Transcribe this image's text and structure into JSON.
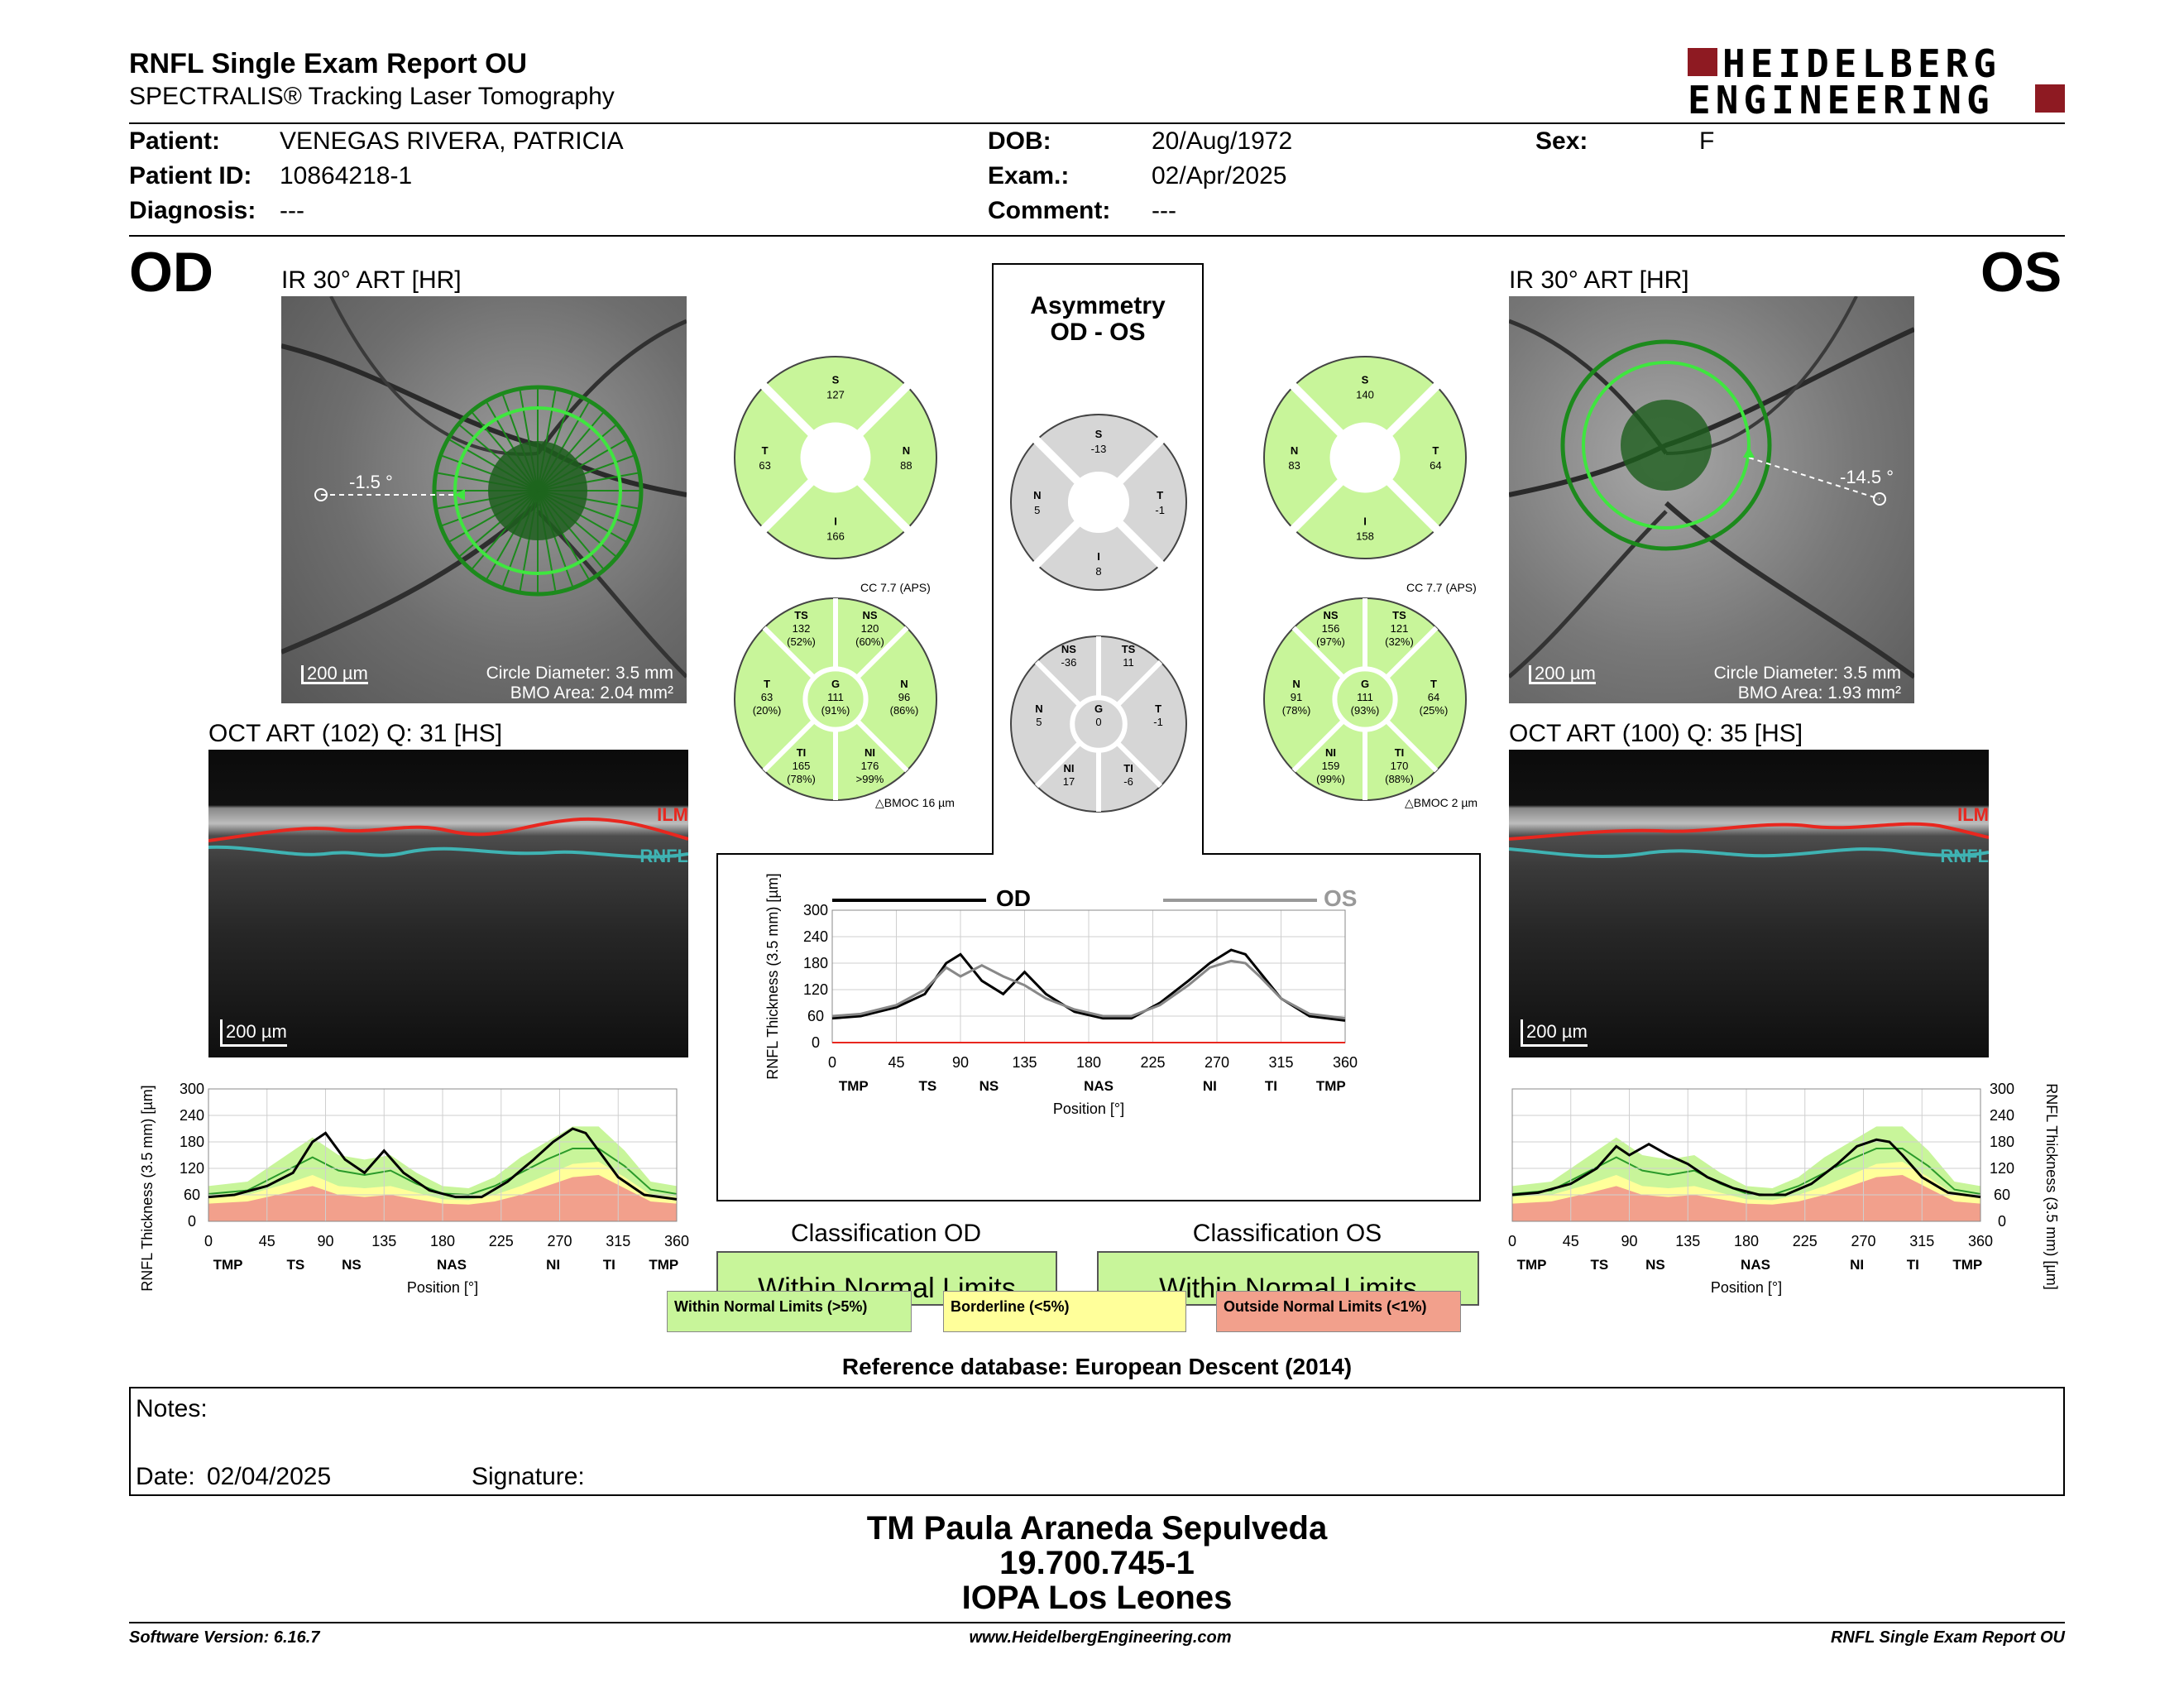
{
  "header": {
    "title": "RNFL Single Exam Report OU",
    "subtitle": "SPECTRALIS® Tracking Laser Tomography",
    "logo_line1": "HEIDELBERG",
    "logo_line2": "ENGINEERING"
  },
  "patient": {
    "name_label": "Patient:",
    "name": "VENEGAS RIVERA, PATRICIA",
    "id_label": "Patient ID:",
    "id": "10864218-1",
    "diagnosis_label": "Diagnosis:",
    "diagnosis": "---",
    "dob_label": "DOB:",
    "dob": "20/Aug/1972",
    "exam_label": "Exam.:",
    "exam": "02/Apr/2025",
    "comment_label": "Comment:",
    "comment": "---",
    "sex_label": "Sex:",
    "sex": "F"
  },
  "od": {
    "eye": "OD",
    "ir_title": "IR 30° ART [HR]",
    "angle": "-1.5 °",
    "scale": "200 µm",
    "circle_diameter": "Circle Diameter: 3.5 mm",
    "bmo_area": "BMO Area: 2.04 mm²",
    "oct_title": "OCT ART (102) Q: 31 [HS]",
    "oct_scale": "200 µm",
    "ilm": "ILM",
    "rnfl": "RNFL",
    "sectors4": {
      "S": "127",
      "T": "63",
      "N": "88",
      "I": "166"
    },
    "cc": "CC 7.7 (APS)",
    "bmoc": "BMOC 16 µm",
    "sectors6": {
      "TS": [
        "132",
        "(52%)"
      ],
      "NS": [
        "120",
        "(60%)"
      ],
      "T": [
        "63",
        "(20%)"
      ],
      "G": [
        "111",
        "(91%)"
      ],
      "N": [
        "96",
        "(86%)"
      ],
      "TI": [
        "165",
        "(78%)"
      ],
      "NI": [
        "176",
        ">99%"
      ]
    },
    "classification_title": "Classification OD",
    "classification": "Within Normal Limits"
  },
  "os": {
    "eye": "OS",
    "ir_title": "IR 30° ART [HR]",
    "angle": "-14.5 °",
    "scale": "200 µm",
    "circle_diameter": "Circle Diameter: 3.5 mm",
    "bmo_area": "BMO Area: 1.93 mm²",
    "oct_title": "OCT ART (100) Q: 35 [HS]",
    "oct_scale": "200 µm",
    "ilm": "ILM",
    "rnfl": "RNFL",
    "sectors4": {
      "S": "140",
      "N": "83",
      "T": "64",
      "I": "158"
    },
    "cc": "CC 7.7 (APS)",
    "bmoc": "BMOC 2 µm",
    "sectors6": {
      "NS": [
        "156",
        "(97%)"
      ],
      "TS": [
        "121",
        "(32%)"
      ],
      "N": [
        "91",
        "(78%)"
      ],
      "G": [
        "111",
        "(93%)"
      ],
      "T": [
        "64",
        "(25%)"
      ],
      "NI": [
        "159",
        "(99%)"
      ],
      "TI": [
        "170",
        "(88%)"
      ]
    },
    "classification_title": "Classification OS",
    "classification": "Within Normal Limits"
  },
  "asymmetry": {
    "title1": "Asymmetry",
    "title2": "OD - OS",
    "sectors4": {
      "S": "-13",
      "N": "5",
      "T": "-1",
      "I": "8"
    },
    "sectors6": {
      "NS": "-36",
      "TS": "11",
      "N": "5",
      "G": "0",
      "T": "-1",
      "NI": "17",
      "TI": "-6"
    },
    "legend_od": "OD",
    "legend_os": "OS"
  },
  "chart_labels": {
    "ylabel": "RNFL Thickness (3.5 mm) [µm]",
    "xlabel": "Position [°]",
    "yticks": [
      "0",
      "60",
      "120",
      "180",
      "240",
      "300"
    ],
    "xticks": [
      "0",
      "45",
      "90",
      "135",
      "180",
      "225",
      "270",
      "315",
      "360"
    ],
    "regions": [
      "TMP",
      "TS",
      "NS",
      "NAS",
      "NI",
      "TI",
      "TMP"
    ]
  },
  "chart_data": [
    {
      "type": "line",
      "name": "OD RNFL thickness profile",
      "xlabel": "Position [°]",
      "ylabel": "RNFL Thickness (3.5 mm) [µm]",
      "xlim": [
        0,
        360
      ],
      "ylim": [
        0,
        300
      ],
      "x": [
        0,
        20,
        45,
        65,
        80,
        90,
        105,
        120,
        135,
        150,
        170,
        190,
        210,
        230,
        250,
        265,
        280,
        290,
        300,
        315,
        335,
        360
      ],
      "series": [
        {
          "name": "OD",
          "values": [
            55,
            60,
            80,
            110,
            180,
            200,
            140,
            110,
            160,
            110,
            70,
            55,
            55,
            90,
            140,
            180,
            210,
            200,
            160,
            100,
            60,
            50
          ]
        }
      ]
    },
    {
      "type": "line",
      "name": "Asymmetry OD vs OS",
      "xlabel": "Position [°]",
      "ylabel": "RNFL Thickness (3.5 mm) [µm]",
      "xlim": [
        0,
        360
      ],
      "ylim": [
        0,
        300
      ],
      "x": [
        0,
        20,
        45,
        65,
        80,
        90,
        105,
        120,
        135,
        150,
        170,
        190,
        210,
        230,
        250,
        265,
        280,
        290,
        300,
        315,
        335,
        360
      ],
      "series": [
        {
          "name": "OD",
          "values": [
            55,
            60,
            80,
            110,
            180,
            200,
            140,
            110,
            160,
            110,
            70,
            55,
            55,
            90,
            140,
            180,
            210,
            200,
            160,
            100,
            60,
            50
          ]
        },
        {
          "name": "OS",
          "values": [
            60,
            65,
            85,
            120,
            170,
            150,
            175,
            150,
            130,
            100,
            75,
            60,
            60,
            85,
            130,
            170,
            185,
            180,
            150,
            100,
            65,
            55
          ]
        }
      ]
    },
    {
      "type": "line",
      "name": "OS RNFL thickness profile",
      "xlabel": "Position [°]",
      "ylabel": "RNFL Thickness (3.5 mm) [µm]",
      "xlim": [
        0,
        360
      ],
      "ylim": [
        0,
        300
      ],
      "x": [
        0,
        20,
        45,
        65,
        80,
        90,
        105,
        120,
        135,
        150,
        170,
        190,
        210,
        230,
        250,
        265,
        280,
        290,
        300,
        315,
        335,
        360
      ],
      "series": [
        {
          "name": "OS",
          "values": [
            60,
            65,
            85,
            120,
            170,
            150,
            175,
            150,
            130,
            100,
            75,
            60,
            60,
            85,
            130,
            170,
            185,
            180,
            150,
            100,
            65,
            55
          ]
        }
      ]
    }
  ],
  "normative": {
    "x": [
      0,
      30,
      60,
      80,
      100,
      120,
      140,
      160,
      180,
      200,
      220,
      240,
      260,
      280,
      300,
      320,
      340,
      360
    ],
    "red": [
      40,
      45,
      65,
      80,
      60,
      55,
      60,
      50,
      40,
      38,
      45,
      60,
      80,
      100,
      105,
      75,
      45,
      40
    ],
    "yellow": [
      55,
      60,
      85,
      105,
      80,
      75,
      80,
      65,
      50,
      48,
      60,
      80,
      105,
      130,
      135,
      100,
      60,
      55
    ],
    "green": [
      80,
      90,
      150,
      190,
      150,
      140,
      150,
      110,
      80,
      75,
      100,
      145,
      180,
      215,
      215,
      160,
      90,
      80
    ],
    "mean": [
      62,
      70,
      115,
      145,
      115,
      105,
      115,
      85,
      63,
      60,
      80,
      110,
      140,
      165,
      165,
      125,
      72,
      62
    ]
  },
  "legend": {
    "within": "Within Normal Limits (>5%)",
    "borderline": "Borderline (<5%)",
    "outside": "Outside Normal Limits (<1%)"
  },
  "reference": "Reference database: European Descent (2014)",
  "notes": {
    "notes_label": "Notes:",
    "date_label": "Date:",
    "date": "02/04/2025",
    "signature_label": "Signature:"
  },
  "operator": {
    "name": "TM Paula Araneda Sepulveda",
    "rut": "19.700.745-1",
    "clinic": "IOPA Los Leones"
  },
  "footer": {
    "software": "Software Version: 6.16.7",
    "website": "www.HeidelbergEngineering.com",
    "report": "RNFL Single Exam Report OU"
  },
  "colors": {
    "green": "#c8f59a",
    "gray": "#d6d6d6",
    "yellow": "#ffff9a",
    "red": "#f2a08c",
    "ilm": "#e8271f",
    "rnfl": "#3fb3b3",
    "logo": "#8e1a22"
  }
}
